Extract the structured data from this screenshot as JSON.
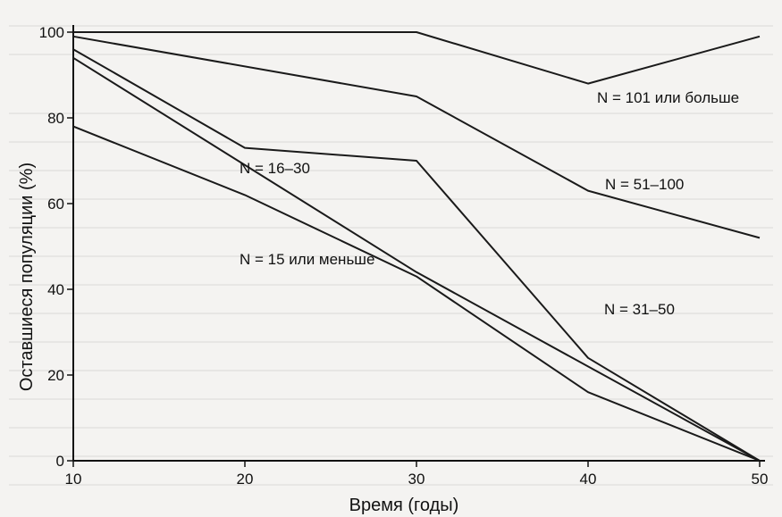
{
  "chart_data": {
    "type": "line",
    "xlabel": "Время (годы)",
    "ylabel": "Оставшиеся популяции (%)",
    "xlim": [
      10,
      50
    ],
    "ylim": [
      0,
      100
    ],
    "x_ticks": [
      "10",
      "20",
      "30",
      "40",
      "50"
    ],
    "y_ticks": [
      "0",
      "20",
      "40",
      "60",
      "80",
      "100"
    ],
    "grid": false,
    "legend": "none",
    "series": [
      {
        "name": "N = 101 или больше",
        "x": [
          10,
          30,
          40,
          50
        ],
        "y": [
          100,
          100,
          88,
          99
        ]
      },
      {
        "name": "N = 51–100",
        "x": [
          10,
          30,
          40,
          50
        ],
        "y": [
          99,
          85,
          63,
          52
        ]
      },
      {
        "name": "N = 16–30",
        "x": [
          10,
          20,
          30,
          40,
          50
        ],
        "y": [
          96,
          73,
          70,
          24,
          0
        ]
      },
      {
        "name": "N = 31–50",
        "x": [
          10,
          30,
          50
        ],
        "y": [
          94,
          44,
          0
        ]
      },
      {
        "name": "N = 15 или меньше",
        "x": [
          10,
          20,
          30,
          40,
          50
        ],
        "y": [
          78,
          62,
          43,
          16,
          0
        ]
      }
    ]
  }
}
